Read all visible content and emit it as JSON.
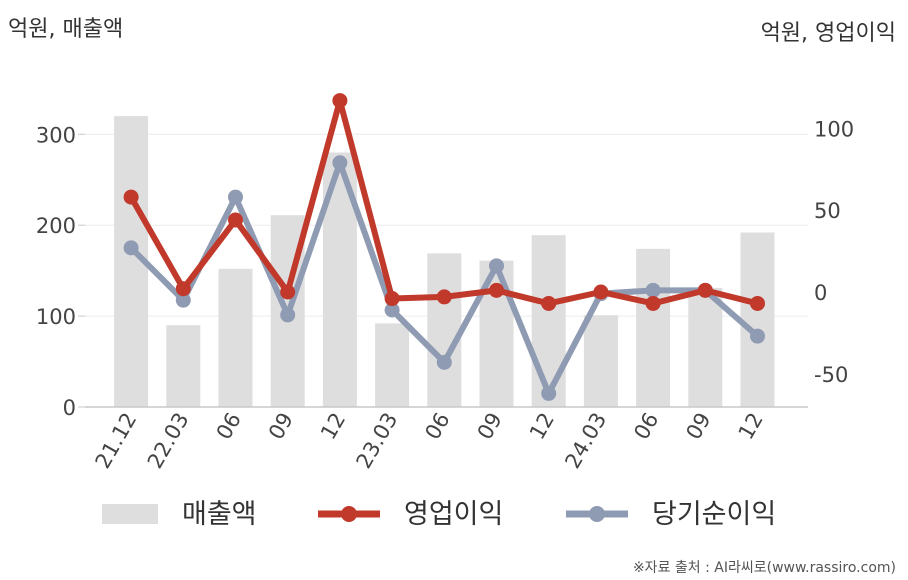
{
  "header": {
    "left_unit": "억원, 매출액",
    "right_unit": "억원, 영업이익"
  },
  "source": "※자료 출처 : AI라씨로(www.rassiro.com)",
  "legend": {
    "revenue": "매출액",
    "operating_profit": "영업이익",
    "net_income": "당기순이익"
  },
  "colors": {
    "revenue": "#dedede",
    "operating_profit": "#c0392b",
    "net_income": "#8f9bb3"
  },
  "chart_data": {
    "type": "bar",
    "categories": [
      "21.12",
      "22.03",
      "06",
      "09",
      "12",
      "23.03",
      "06",
      "09",
      "12",
      "24.03",
      "06",
      "09",
      "12"
    ],
    "left_axis": {
      "ticks": [
        0,
        100,
        200,
        300
      ],
      "range": [
        0,
        350
      ]
    },
    "right_axis": {
      "ticks": [
        -50,
        0,
        50,
        100
      ],
      "range": [
        -72,
        122
      ]
    },
    "series": [
      {
        "name": "매출액",
        "axis": "left",
        "kind": "bar",
        "values": [
          320,
          90,
          152,
          211,
          280,
          92,
          169,
          161,
          189,
          101,
          174,
          131,
          192
        ]
      },
      {
        "name": "영업이익",
        "axis": "right",
        "kind": "line",
        "values": [
          58,
          2,
          44,
          0,
          117,
          -4,
          -3,
          1,
          -7,
          0,
          -7,
          1,
          -7
        ]
      },
      {
        "name": "당기순이익",
        "axis": "right",
        "kind": "line",
        "values": [
          27,
          -5,
          58,
          -14,
          79,
          -11,
          -43,
          16,
          -62,
          -1,
          1,
          1,
          -27
        ]
      }
    ]
  }
}
